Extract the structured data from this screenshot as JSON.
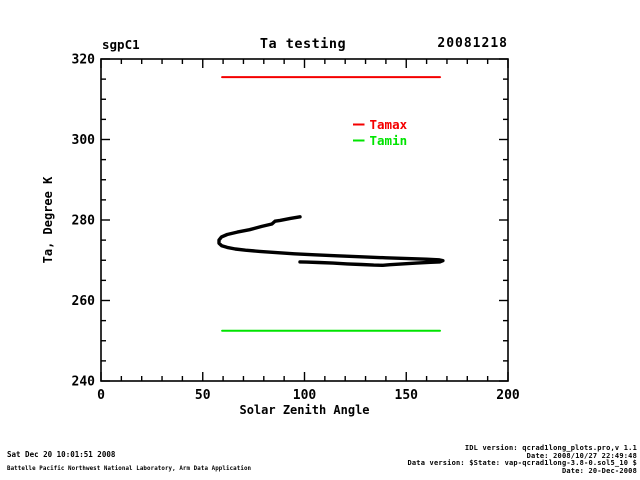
{
  "header": {
    "site": "sgpC1",
    "title": "Ta testing",
    "date": "20081218"
  },
  "chart_data": {
    "type": "line",
    "title": "Ta testing",
    "xlabel": "Solar Zenith Angle",
    "ylabel": "Ta, Degree K",
    "xlim": [
      0,
      200
    ],
    "ylim": [
      240,
      320
    ],
    "x_major_ticks": [
      0,
      50,
      100,
      150,
      200
    ],
    "x_minor_step": 10,
    "y_major_ticks": [
      240,
      260,
      280,
      300,
      320
    ],
    "y_minor_step": 5,
    "grid": false,
    "legend_position": "upper right inside",
    "legend": [
      {
        "label": "Tamax",
        "color": "#f40000"
      },
      {
        "label": "Tamin",
        "color": "#00e400"
      }
    ],
    "series": [
      {
        "name": "Tamax",
        "color": "#f40000",
        "line_width": 2,
        "points": [
          [
            59.5,
            315.5
          ],
          [
            166.6,
            315.5
          ]
        ]
      },
      {
        "name": "Tamin",
        "color": "#00e400",
        "line_width": 2,
        "points": [
          [
            59.5,
            252.5
          ],
          [
            166.6,
            252.5
          ]
        ]
      },
      {
        "name": "Ta",
        "color": "#000000",
        "line_width": 3.4,
        "points": [
          [
            97.8,
            280.8
          ],
          [
            93,
            280.4
          ],
          [
            88,
            279.9
          ],
          [
            85.5,
            279.7
          ],
          [
            84,
            279.0
          ],
          [
            79,
            278.4
          ],
          [
            73,
            277.6
          ],
          [
            67,
            277.0
          ],
          [
            62,
            276.4
          ],
          [
            59.2,
            275.8
          ],
          [
            58.0,
            275.0
          ],
          [
            58.0,
            274.2
          ],
          [
            59.3,
            273.6
          ],
          [
            62,
            273.2
          ],
          [
            66,
            272.8
          ],
          [
            71,
            272.5
          ],
          [
            78,
            272.2
          ],
          [
            86,
            271.9
          ],
          [
            95,
            271.6
          ],
          [
            105,
            271.35
          ],
          [
            116,
            271.1
          ],
          [
            128,
            270.85
          ],
          [
            140,
            270.6
          ],
          [
            151,
            270.4
          ],
          [
            160,
            270.25
          ],
          [
            166,
            270.1
          ],
          [
            168,
            269.9
          ],
          [
            166.5,
            269.6
          ],
          [
            162,
            269.5
          ],
          [
            155,
            269.3
          ],
          [
            148,
            269.1
          ],
          [
            142,
            268.9
          ],
          [
            138.5,
            268.75
          ],
          [
            134,
            268.8
          ],
          [
            128,
            268.95
          ],
          [
            121,
            269.1
          ],
          [
            114,
            269.3
          ],
          [
            107,
            269.45
          ],
          [
            101,
            269.55
          ],
          [
            97.8,
            269.6
          ]
        ]
      }
    ]
  },
  "footer": {
    "timestamp": "Sat Dec 20 10:01:51 2008",
    "attribution": "Battelle Pacific Northwest National Laboratory, Arm Data Application",
    "version_lines": [
      "IDL version: qcrad1long_plots.pro,v 1.1",
      "Date: 2008/10/27 22:49:48",
      "Data version: $State: vap-qcrad1long-3.8-0.sol5_10 $",
      "Date: 20-Dec-2008"
    ]
  }
}
